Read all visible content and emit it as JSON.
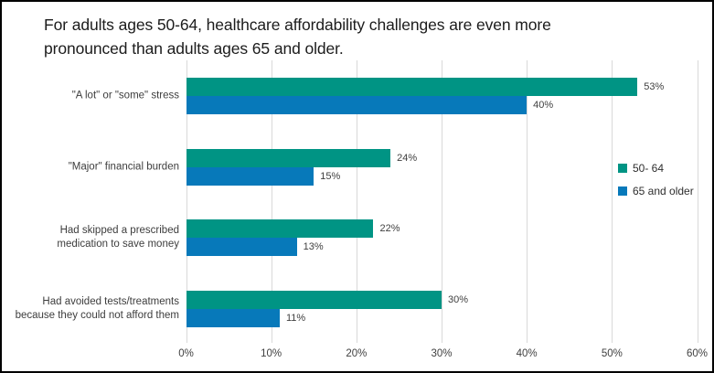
{
  "title": "For adults ages 50-64, healthcare affordability challenges are even more\npronounced than adults ages 65 and older.",
  "chart_data": {
    "type": "bar",
    "orientation": "horizontal",
    "title": "For adults ages 50-64, healthcare affordability challenges are even more pronounced than adults ages 65 and older.",
    "categories": [
      "\"A lot\" or \"some\" stress",
      "\"Major\" financial burden",
      "Had skipped a prescribed\nmedication to save money",
      "Had avoided tests/treatments\nbecause they could not afford them"
    ],
    "series": [
      {
        "name": "50- 64",
        "color": "#009484",
        "values": [
          53,
          24,
          22,
          30
        ],
        "labels": [
          "53%",
          "24%",
          "22%",
          "30%"
        ]
      },
      {
        "name": "65 and older",
        "color": "#0779BA",
        "values": [
          40,
          15,
          13,
          11
        ],
        "labels": [
          "40%",
          "15%",
          "13%",
          "11%"
        ]
      }
    ],
    "x_ticks": [
      "0%",
      "10%",
      "20%",
      "30%",
      "40%",
      "50%",
      "60%"
    ],
    "xlim": [
      0,
      60
    ],
    "grid": true,
    "gridline_color": "#D9D9D9",
    "legend_position": "right-middle",
    "background_color": "#FFFFFF",
    "border_color": "#000000",
    "label_color": "#404040"
  }
}
